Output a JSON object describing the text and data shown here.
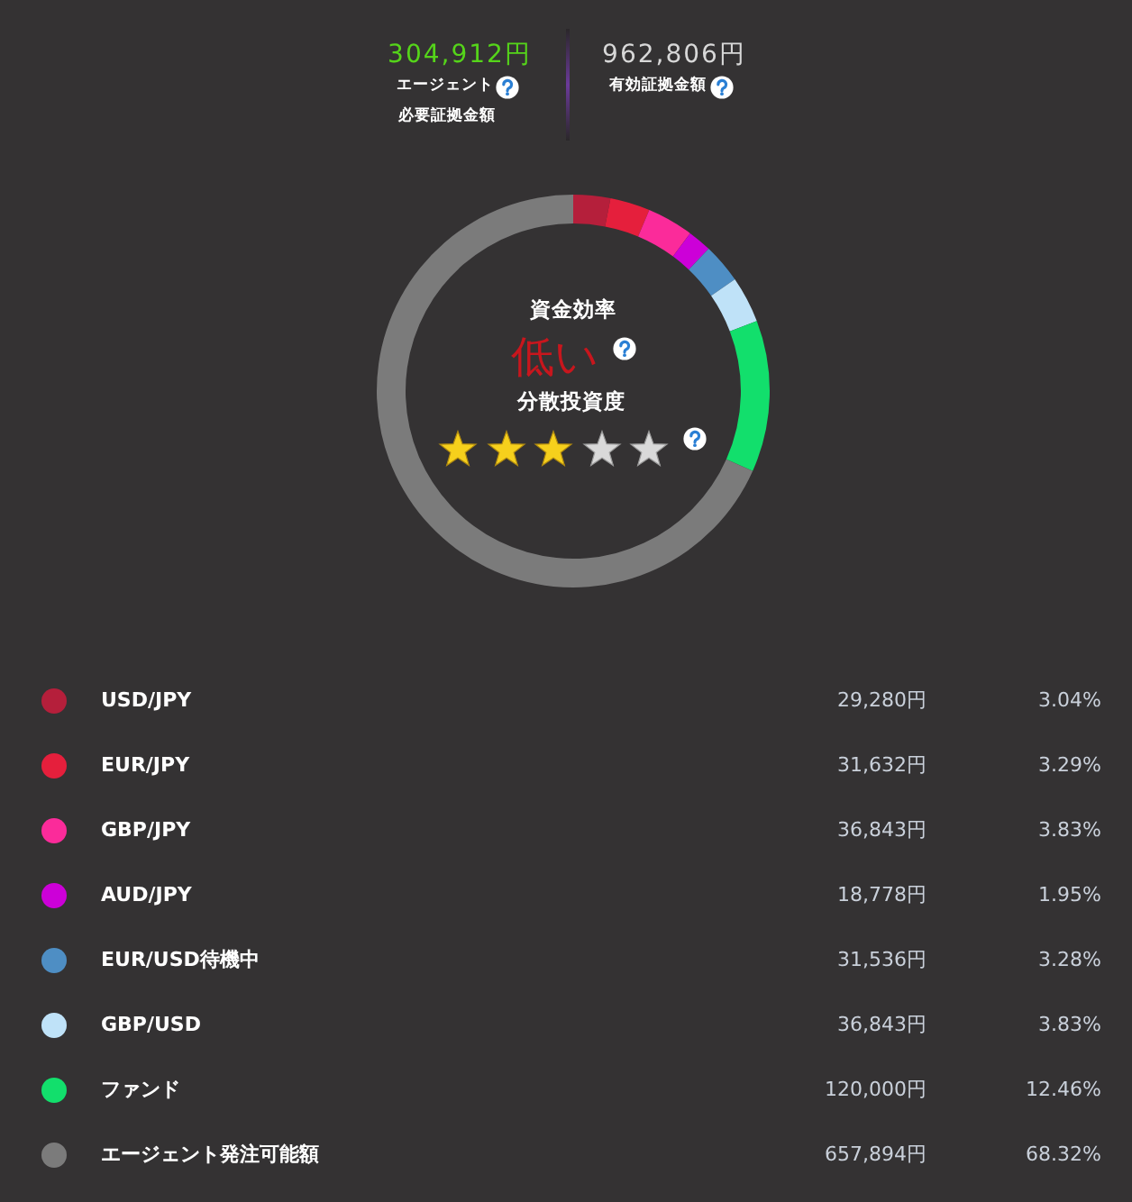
{
  "chart_data": {
    "type": "donut",
    "categories": [
      "USD/JPY",
      "EUR/JPY",
      "GBP/JPY",
      "AUD/JPY",
      "EUR/USD待機中",
      "GBP/USD",
      "ファンド",
      "エージェント発注可能額"
    ],
    "values": [
      29280,
      31632,
      36843,
      18778,
      31536,
      36843,
      120000,
      657894
    ],
    "colors": [
      "#b51f3b",
      "#e51f3c",
      "#fb2b9a",
      "#cc00d8",
      "#4e8ec4",
      "#bfe2f8",
      "#12df6c",
      "#7b7b7b"
    ],
    "value_labels": [
      "29,280円",
      "31,632円",
      "36,843円",
      "18,778円",
      "31,536円",
      "36,843円",
      "120,000円",
      "657,894円"
    ],
    "legend": "bottom",
    "annotations": [
      "304,912円",
      "エージェント",
      "必要証拠金額",
      "962,806円",
      "有効証拠金額",
      "資金効率",
      "低い",
      "分散投資度",
      "3.04%",
      "3.29%",
      "3.83%",
      "1.95%",
      "3.28%",
      "3.83%",
      "12.46%",
      "68.32%"
    ]
  }
}
